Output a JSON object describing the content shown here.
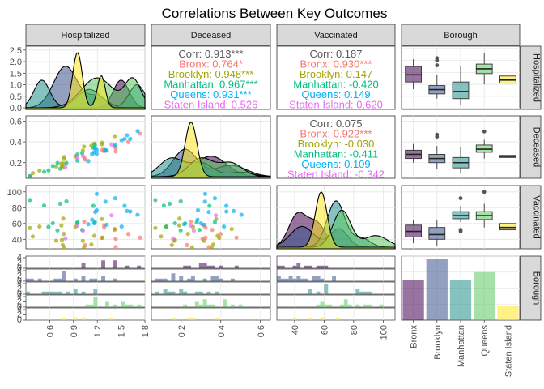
{
  "chart_data": {
    "type": "pairs",
    "title": "Correlations Between Key Outcomes",
    "variables": [
      "Hospitalized",
      "Deceased",
      "Vaccinated",
      "Borough"
    ],
    "groups": [
      "Bronx",
      "Brooklyn",
      "Manhattan",
      "Queens",
      "Staten Island"
    ],
    "colors": {
      "Bronx": "#F8766D",
      "Brooklyn": "#A3A500",
      "Manhattan": "#00BF7D",
      "Queens": "#00B0F6",
      "Staten Island": "#E76BF3",
      "Overall": "#595959"
    },
    "fill_colors": {
      "Bronx": "#440154",
      "Brooklyn": "#3B528B",
      "Manhattan": "#21908C",
      "Queens": "#5DC863",
      "Staten Island": "#FDE725"
    },
    "axes": {
      "Hospitalized": {
        "range": [
          0.3,
          1.8
        ],
        "ticks": [
          0.6,
          0.9,
          1.2,
          1.5,
          1.8
        ],
        "y_ticks": [
          0.0,
          0.5,
          1.0,
          1.5,
          2.0,
          2.5
        ]
      },
      "Deceased": {
        "range": [
          0.05,
          0.65
        ],
        "ticks": [
          0.2,
          0.4,
          0.6
        ]
      },
      "Vaccinated": {
        "range": [
          28,
          108
        ],
        "ticks": [
          40,
          60,
          80,
          100
        ]
      }
    },
    "correlations": {
      "Hospitalized-Deceased": {
        "overall": "Corr: 0.913***",
        "groups": [
          "Bronx: 0.764*",
          "Brooklyn: 0.948***",
          "Manhattan: 0.967***",
          "Queens: 0.931***",
          "Staten Island: 0.526"
        ]
      },
      "Hospitalized-Vaccinated": {
        "overall": "Corr: 0.187",
        "groups": [
          "Bronx: 0.930***",
          "Brooklyn: 0.147",
          "Manhattan: -0.420",
          "Queens: 0.149",
          "Staten Island: 0.620"
        ]
      },
      "Deceased-Vaccinated": {
        "overall": "Corr: 0.075",
        "groups": [
          "Bronx: 0.922***",
          "Brooklyn: -0.030",
          "Manhattan: -0.411",
          "Queens: 0.109",
          "Staten Island: -0.342"
        ]
      }
    },
    "densities": {
      "Hospitalized": [
        {
          "group": "Bronx",
          "peaks": [
            [
              1.5,
              0.1,
              1.2
            ]
          ]
        },
        {
          "group": "Brooklyn",
          "peaks": [
            [
              0.8,
              0.15,
              1.8
            ],
            [
              1.2,
              0.12,
              0.5
            ]
          ]
        },
        {
          "group": "Manhattan",
          "peaks": [
            [
              0.5,
              0.1,
              1.2
            ],
            [
              1.1,
              0.15,
              0.8
            ],
            [
              1.7,
              0.1,
              1.0
            ]
          ]
        },
        {
          "group": "Queens",
          "peaks": [
            [
              1.2,
              0.2,
              1.3
            ],
            [
              1.65,
              0.1,
              1.2
            ]
          ]
        },
        {
          "group": "Staten Island",
          "peaks": [
            [
              0.95,
              0.06,
              2.4
            ],
            [
              1.25,
              0.05,
              1.4
            ]
          ]
        }
      ],
      "Deceased": [
        {
          "group": "Bronx",
          "peaks": [
            [
              0.35,
              0.08,
              0.9
            ]
          ]
        },
        {
          "group": "Brooklyn",
          "peaks": [
            [
              0.22,
              0.06,
              1.2
            ],
            [
              0.45,
              0.08,
              0.5
            ]
          ]
        },
        {
          "group": "Manhattan",
          "peaks": [
            [
              0.15,
              0.06,
              0.8
            ],
            [
              0.3,
              0.06,
              0.6
            ],
            [
              0.5,
              0.06,
              0.2
            ]
          ]
        },
        {
          "group": "Queens",
          "peaks": [
            [
              0.3,
              0.06,
              0.8
            ],
            [
              0.45,
              0.06,
              0.6
            ]
          ]
        },
        {
          "group": "Staten Island",
          "peaks": [
            [
              0.25,
              0.03,
              2.4
            ]
          ]
        }
      ],
      "Vaccinated": [
        {
          "group": "Bronx",
          "peaks": [
            [
              42,
              6,
              1.4
            ],
            [
              55,
              6,
              1.0
            ]
          ]
        },
        {
          "group": "Brooklyn",
          "peaks": [
            [
              45,
              8,
              0.9
            ],
            [
              70,
              6,
              0.8
            ]
          ]
        },
        {
          "group": "Manhattan",
          "peaks": [
            [
              68,
              6,
              2.0
            ],
            [
              85,
              6,
              0.4
            ]
          ]
        },
        {
          "group": "Queens",
          "peaks": [
            [
              72,
              6,
              1.6
            ],
            [
              95,
              8,
              0.5
            ]
          ]
        },
        {
          "group": "Staten Island",
          "peaks": [
            [
              58,
              4,
              2.4
            ]
          ]
        }
      ]
    },
    "boxplots": {
      "Hospitalized": [
        {
          "group": "Bronx",
          "min": 0.8,
          "q1": 1.1,
          "median": 1.4,
          "q3": 1.75,
          "max": 2.05,
          "outliers": []
        },
        {
          "group": "Brooklyn",
          "min": 0.4,
          "q1": 0.6,
          "median": 0.78,
          "q3": 0.95,
          "max": 1.4,
          "outliers": [
            2.0,
            2.1,
            1.8
          ]
        },
        {
          "group": "Manhattan",
          "min": 0.15,
          "q1": 0.4,
          "median": 0.7,
          "q3": 1.1,
          "max": 1.75,
          "outliers": []
        },
        {
          "group": "Queens",
          "min": 1.0,
          "q1": 1.45,
          "median": 1.65,
          "q3": 1.85,
          "max": 2.3,
          "outliers": []
        },
        {
          "group": "Staten Island",
          "min": 1.0,
          "q1": 1.05,
          "median": 1.18,
          "q3": 1.35,
          "max": 1.45,
          "outliers": []
        }
      ],
      "Deceased": [
        {
          "group": "Bronx",
          "min": 0.2,
          "q1": 0.24,
          "median": 0.28,
          "q3": 0.32,
          "max": 0.38,
          "outliers": []
        },
        {
          "group": "Brooklyn",
          "min": 0.14,
          "q1": 0.2,
          "median": 0.24,
          "q3": 0.28,
          "max": 0.36,
          "outliers": [
            0.45,
            0.47
          ]
        },
        {
          "group": "Manhattan",
          "min": 0.1,
          "q1": 0.15,
          "median": 0.2,
          "q3": 0.25,
          "max": 0.35,
          "outliers": []
        },
        {
          "group": "Queens",
          "min": 0.24,
          "q1": 0.3,
          "median": 0.33,
          "q3": 0.37,
          "max": 0.42,
          "outliers": [
            0.5
          ]
        },
        {
          "group": "Staten Island",
          "min": 0.24,
          "q1": 0.25,
          "median": 0.26,
          "q3": 0.27,
          "max": 0.28,
          "outliers": []
        }
      ],
      "Vaccinated": [
        {
          "group": "Bronx",
          "min": 35,
          "q1": 43,
          "median": 50,
          "q3": 58,
          "max": 65,
          "outliers": []
        },
        {
          "group": "Brooklyn",
          "min": 32,
          "q1": 40,
          "median": 46,
          "q3": 55,
          "max": 65,
          "outliers": []
        },
        {
          "group": "Manhattan",
          "min": 62,
          "q1": 66,
          "median": 70,
          "q3": 75,
          "max": 82,
          "outliers": [
            50,
            52,
            92
          ]
        },
        {
          "group": "Queens",
          "min": 55,
          "q1": 65,
          "median": 70,
          "q3": 75,
          "max": 85,
          "outliers": [
            100
          ]
        },
        {
          "group": "Staten Island",
          "min": 48,
          "q1": 52,
          "median": 55,
          "q3": 60,
          "max": 62,
          "outliers": []
        }
      ]
    },
    "borough_counts": {
      "Bronx": 25,
      "Brooklyn": 38,
      "Manhattan": 25,
      "Queens": 30,
      "Staten Island": 9
    }
  }
}
